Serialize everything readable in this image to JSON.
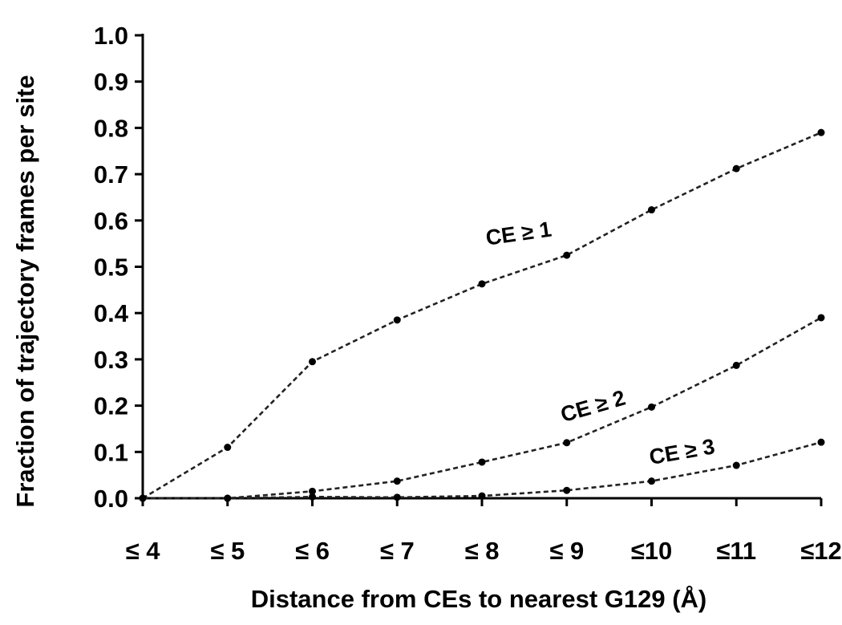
{
  "chart_data": {
    "type": "line",
    "categories": [
      "≤ 4",
      "≤ 5",
      "≤ 6",
      "≤ 7",
      "≤ 8",
      "≤ 9",
      "≤10",
      "≤11",
      "≤12"
    ],
    "series": [
      {
        "name": "CE ≥ 1",
        "values": [
          0.0,
          0.11,
          0.295,
          0.385,
          0.463,
          0.525,
          0.623,
          0.712,
          0.79
        ]
      },
      {
        "name": "CE ≥ 2",
        "values": [
          0.0,
          0.0,
          0.015,
          0.037,
          0.078,
          0.12,
          0.197,
          0.287,
          0.39
        ]
      },
      {
        "name": "CE ≥ 3",
        "values": [
          0.0,
          0.0,
          0.003,
          0.002,
          0.005,
          0.017,
          0.037,
          0.071,
          0.121
        ]
      }
    ],
    "yticks": [
      "0.0",
      "0.1",
      "0.2",
      "0.3",
      "0.4",
      "0.5",
      "0.6",
      "0.7",
      "0.8",
      "0.9",
      "1.0"
    ],
    "xlabel": "Distance from CEs to nearest G129 (Å)",
    "ylabel": "Fraction of trajectory frames per site",
    "ylim": [
      0,
      1.0
    ],
    "grid": false,
    "legend": "inline labels",
    "line_style": "dashed",
    "line_color": "#222222"
  }
}
